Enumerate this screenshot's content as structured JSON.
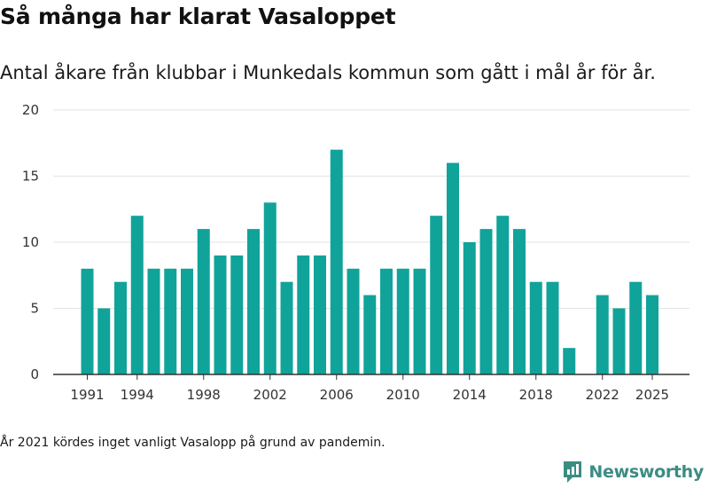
{
  "title": "Så många har klarat Vasaloppet",
  "subtitle": "Antal åkare från klubbar i Munkedals kommun som gått i mål år för år.",
  "note": "År 2021 kördes inget vanligt Vasalopp på grund av pandemin.",
  "brand": {
    "name": "Newsworthy",
    "color": "#3c8c82"
  },
  "chart_data": {
    "type": "bar",
    "title": "Så många har klarat Vasaloppet",
    "xlabel": "",
    "ylabel": "",
    "ylim": [
      0,
      20
    ],
    "yticks": [
      0,
      5,
      10,
      15,
      20
    ],
    "xticks": [
      1991,
      1994,
      1998,
      2002,
      2006,
      2010,
      2014,
      2018,
      2022,
      2025
    ],
    "grid": true,
    "bar_color": "#10a39a",
    "x": [
      1991,
      1992,
      1993,
      1994,
      1995,
      1996,
      1997,
      1998,
      1999,
      2000,
      2001,
      2002,
      2003,
      2004,
      2005,
      2006,
      2007,
      2008,
      2009,
      2010,
      2011,
      2012,
      2013,
      2014,
      2015,
      2016,
      2017,
      2018,
      2019,
      2020,
      2021,
      2022,
      2023,
      2024,
      2025
    ],
    "values": [
      8,
      5,
      7,
      12,
      8,
      8,
      8,
      11,
      9,
      9,
      11,
      13,
      7,
      9,
      9,
      17,
      8,
      6,
      8,
      8,
      8,
      12,
      16,
      10,
      11,
      12,
      11,
      7,
      7,
      2,
      null,
      6,
      5,
      7,
      6
    ]
  }
}
